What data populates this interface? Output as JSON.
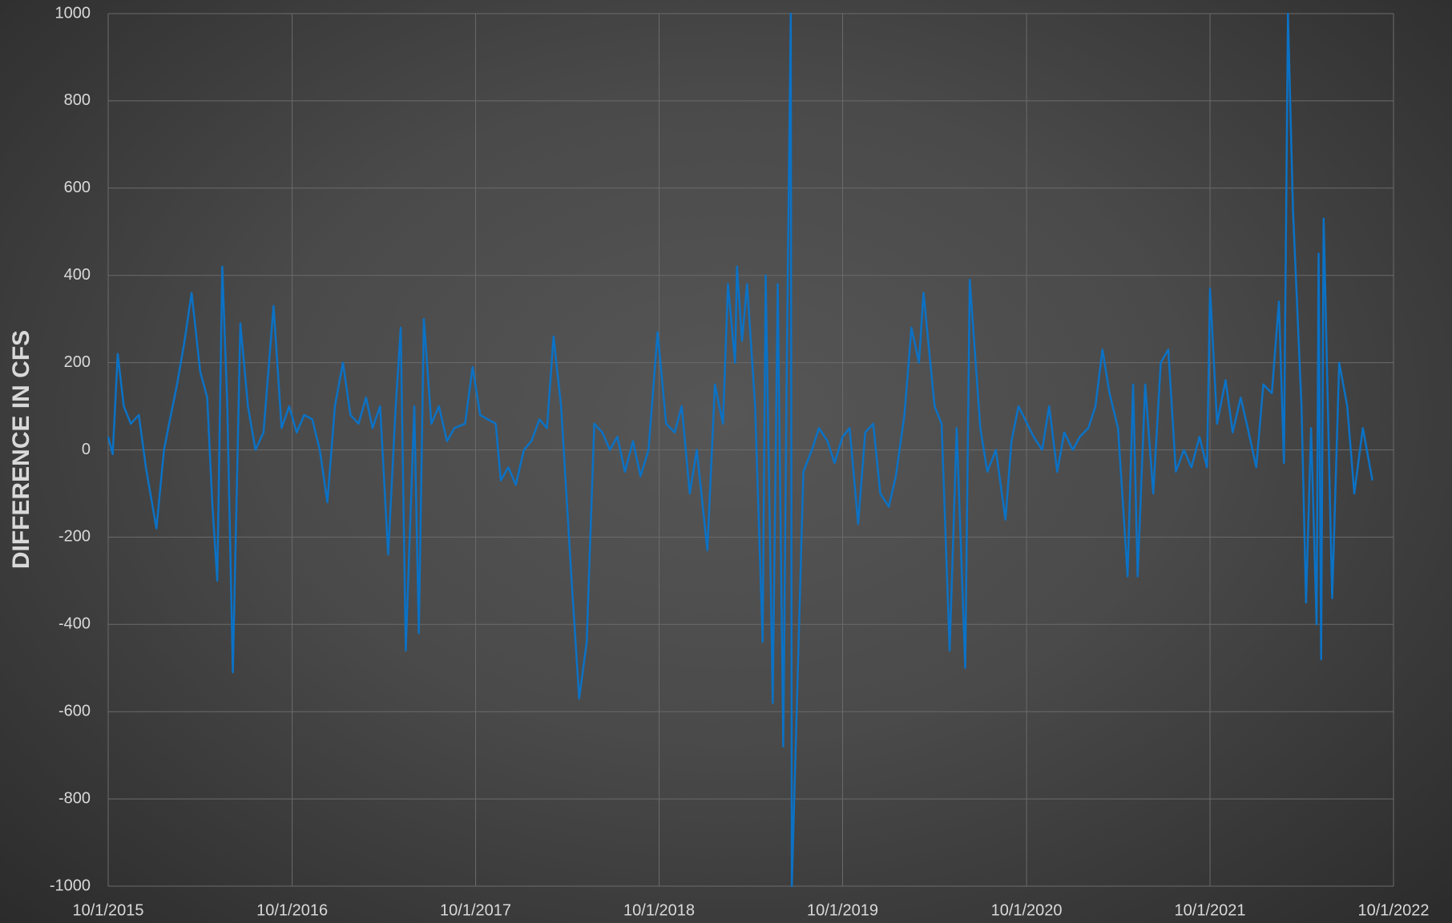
{
  "chart_data": {
    "type": "line",
    "y_label": "DIFFERENCE IN CFS",
    "color": "#0b72c6",
    "grid": true,
    "xlim": [
      "10/1/2015",
      "10/1/2022"
    ],
    "xticks": [
      "10/1/2015",
      "10/1/2016",
      "10/1/2017",
      "10/1/2018",
      "10/1/2019",
      "10/1/2020",
      "10/1/2021",
      "10/1/2022"
    ],
    "ylim": [
      -1000,
      1000
    ],
    "yticks": [
      -1000,
      -800,
      -600,
      -400,
      -200,
      0,
      200,
      400,
      600,
      800,
      1000
    ],
    "x": [
      "10/1/2015",
      "10/10/2015",
      "10/20/2015",
      "11/1/2015",
      "11/15/2015",
      "12/1/2015",
      "12/15/2015",
      "1/5/2016",
      "1/20/2016",
      "2/1/2016",
      "2/15/2016",
      "3/1/2016",
      "3/15/2016",
      "4/1/2016",
      "4/15/2016",
      "4/25/2016",
      "5/5/2016",
      "5/15/2016",
      "5/25/2016",
      "6/5/2016",
      "6/20/2016",
      "7/5/2016",
      "7/20/2016",
      "8/5/2016",
      "8/25/2016",
      "9/10/2016",
      "9/25/2016",
      "10/10/2016",
      "10/25/2016",
      "11/10/2016",
      "11/25/2016",
      "12/10/2016",
      "12/25/2016",
      "1/10/2017",
      "1/25/2017",
      "2/10/2017",
      "2/25/2017",
      "3/10/2017",
      "3/25/2017",
      "4/10/2017",
      "4/25/2017",
      "5/5/2017",
      "5/15/2017",
      "6/1/2017",
      "6/10/2017",
      "6/20/2017",
      "7/5/2017",
      "7/20/2017",
      "8/5/2017",
      "8/20/2017",
      "9/10/2017",
      "9/25/2017",
      "10/10/2017",
      "10/25/2017",
      "11/10/2017",
      "11/20/2017",
      "12/5/2017",
      "12/20/2017",
      "1/5/2018",
      "1/20/2018",
      "2/5/2018",
      "2/20/2018",
      "3/5/2018",
      "3/20/2018",
      "4/10/2018",
      "4/25/2018",
      "5/10/2018",
      "5/25/2018",
      "6/10/2018",
      "6/25/2018",
      "7/10/2018",
      "7/25/2018",
      "8/10/2018",
      "8/25/2018",
      "9/10/2018",
      "9/28/2018",
      "10/15/2018",
      "11/1/2018",
      "11/15/2018",
      "12/1/2018",
      "12/15/2018",
      "1/5/2019",
      "1/20/2019",
      "2/5/2019",
      "2/15/2019",
      "3/1/2019",
      "3/5/2019",
      "3/15/2019",
      "3/25/2019",
      "4/10/2019",
      "4/25/2019",
      "5/1/2019",
      "5/15/2019",
      "5/25/2019",
      "6/5/2019",
      "6/12/2019",
      "6/20/2019",
      "6/22/2019",
      "7/1/2019",
      "7/15/2019",
      "8/1/2019",
      "8/15/2019",
      "9/1/2019",
      "9/15/2019",
      "10/1/2019",
      "10/15/2019",
      "11/1/2019",
      "11/15/2019",
      "12/1/2019",
      "12/15/2019",
      "1/1/2020",
      "1/15/2020",
      "2/1/2020",
      "2/15/2020",
      "3/1/2020",
      "3/10/2020",
      "4/1/2020",
      "4/15/2020",
      "5/1/2020",
      "5/15/2020",
      "6/1/2020",
      "6/10/2020",
      "7/1/2020",
      "7/15/2020",
      "8/1/2020",
      "8/20/2020",
      "9/1/2020",
      "9/15/2020",
      "10/15/2020",
      "11/1/2020",
      "11/15/2020",
      "12/1/2020",
      "12/15/2020",
      "1/1/2021",
      "1/15/2021",
      "2/1/2021",
      "2/15/2021",
      "3/1/2021",
      "3/15/2021",
      "4/1/2021",
      "4/20/2021",
      "5/1/2021",
      "5/10/2021",
      "5/25/2021",
      "6/10/2021",
      "6/25/2021",
      "7/10/2021",
      "7/25/2021",
      "8/10/2021",
      "8/25/2021",
      "9/10/2021",
      "9/25/2021",
      "10/1/2021",
      "10/15/2021",
      "11/1/2021",
      "11/15/2021",
      "12/1/2021",
      "12/15/2021",
      "1/1/2022",
      "1/15/2022",
      "2/1/2022",
      "2/15/2022",
      "2/25/2022",
      "3/5/2022",
      "3/15/2022",
      "4/1/2022",
      "4/10/2022",
      "4/20/2022",
      "5/1/2022",
      "5/5/2022",
      "5/10/2022",
      "5/15/2022",
      "6/1/2022",
      "6/15/2022",
      "7/1/2022",
      "7/15/2022",
      "8/1/2022",
      "8/20/2022"
    ],
    "values": [
      30,
      -10,
      220,
      100,
      60,
      80,
      -40,
      -180,
      0,
      70,
      150,
      250,
      360,
      180,
      120,
      -120,
      -300,
      420,
      100,
      -510,
      290,
      100,
      0,
      40,
      330,
      50,
      100,
      40,
      80,
      70,
      0,
      -120,
      100,
      200,
      80,
      60,
      120,
      50,
      100,
      -240,
      100,
      280,
      -460,
      100,
      -420,
      300,
      60,
      100,
      20,
      50,
      60,
      190,
      80,
      70,
      60,
      -70,
      -40,
      -80,
      0,
      20,
      70,
      50,
      260,
      100,
      -300,
      -570,
      -440,
      60,
      40,
      0,
      30,
      -50,
      20,
      -60,
      0,
      270,
      60,
      40,
      100,
      -100,
      0,
      -230,
      150,
      60,
      380,
      200,
      420,
      250,
      380,
      100,
      -440,
      400,
      -580,
      380,
      -680,
      200,
      1000,
      -1000,
      -630,
      -50,
      0,
      50,
      20,
      -30,
      30,
      50,
      -170,
      40,
      60,
      -100,
      -130,
      -60,
      80,
      280,
      200,
      360,
      100,
      60,
      -460,
      50,
      -500,
      390,
      50,
      -50,
      0,
      -160,
      20,
      100,
      30,
      0,
      100,
      -50,
      40,
      0,
      30,
      50,
      100,
      230,
      130,
      50,
      -290,
      150,
      -290,
      150,
      -100,
      200,
      230,
      -50,
      0,
      -40,
      30,
      -40,
      370,
      60,
      160,
      40,
      120,
      50,
      -40,
      150,
      130,
      340,
      -30,
      1000,
      550,
      100,
      -350,
      50,
      -400,
      450,
      -480,
      530,
      -340,
      200,
      100,
      -100,
      50,
      -70
    ]
  }
}
